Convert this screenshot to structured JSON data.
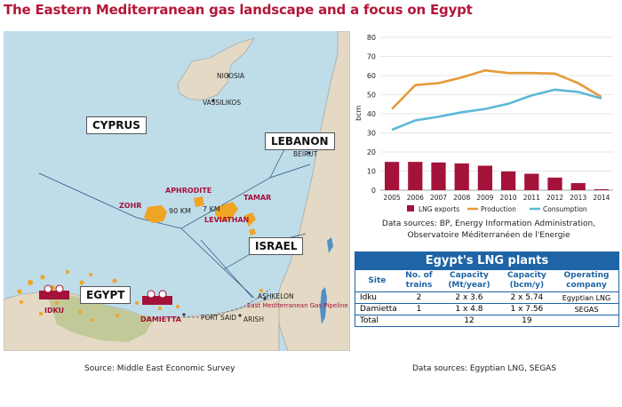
{
  "title": "The Eastern Mediterranean gas landscape and a focus on Egypt",
  "map": {
    "countries": [
      "CYPRUS",
      "LEBANON",
      "ISRAEL",
      "EGYPT"
    ],
    "cities": [
      "NICOSIA",
      "VASSILIKOS",
      "BEIRUT",
      "ASHKELON",
      "ARISH",
      "PORT SAID"
    ],
    "fields": [
      "APHRODITE",
      "TAMAR",
      "ZOHR",
      "LEVIATHAN"
    ],
    "lng_sites": [
      "IDKU",
      "DAMIETTA"
    ],
    "distances": [
      "90 KM",
      "7 KM"
    ],
    "pipeline": "East Mediterranean Gas Pipeline",
    "source": "Source: Middle East Economic Survey"
  },
  "chart_data": {
    "type": "bar",
    "categories": [
      "2005",
      "2006",
      "2007",
      "2008",
      "2009",
      "2010",
      "2011",
      "2012",
      "2013",
      "2014"
    ],
    "series": [
      {
        "name": "LNG exports",
        "kind": "bar",
        "color": "#a4123a",
        "values": [
          14.8,
          14.8,
          14.5,
          14,
          12.8,
          9.8,
          8.6,
          6.6,
          3.7,
          0.5
        ]
      },
      {
        "name": "Production",
        "kind": "line",
        "color": "#e49b3a",
        "values": [
          42.5,
          55,
          56,
          59,
          62.7,
          61.3,
          61.3,
          61,
          56,
          48.8
        ]
      },
      {
        "name": "Consumption",
        "kind": "line",
        "color": "#5bb8d6",
        "values": [
          31.6,
          36.5,
          38.4,
          40.8,
          42.5,
          45.2,
          49.6,
          52.6,
          51.4,
          48
        ]
      }
    ],
    "ylabel": "bcm",
    "yticks": [
      0,
      10,
      20,
      30,
      40,
      50,
      60,
      70,
      80
    ],
    "ylim": [
      0,
      80
    ],
    "grid": true,
    "legend": "bottom",
    "source": "Data sources: BP, Energy Information Administration, Observatoire Méditerranéen de l'Energie"
  },
  "table": {
    "caption": "Egypt's LNG plants",
    "headers": [
      "Site",
      "No. of trains",
      "Capacity (Mt/year)",
      "Capacity (bcm/y)",
      "Operating company"
    ],
    "rows": [
      [
        "Idku",
        "2",
        "2 x 3.6",
        "2 x 5.74",
        "Egyptian LNG"
      ],
      [
        "Damietta",
        "1",
        "1 x 4.8",
        "1 x 7.56",
        "SEGAS"
      ],
      [
        "Total",
        "",
        "12",
        "19",
        ""
      ]
    ],
    "source": "Data sources: Egyptian LNG, SEGAS"
  },
  "colors": {
    "title": "#b2183a",
    "sea": "#bfdce9",
    "land": "#e3d9c4",
    "field": "#f0a423",
    "table_blue": "#1e64a6"
  }
}
